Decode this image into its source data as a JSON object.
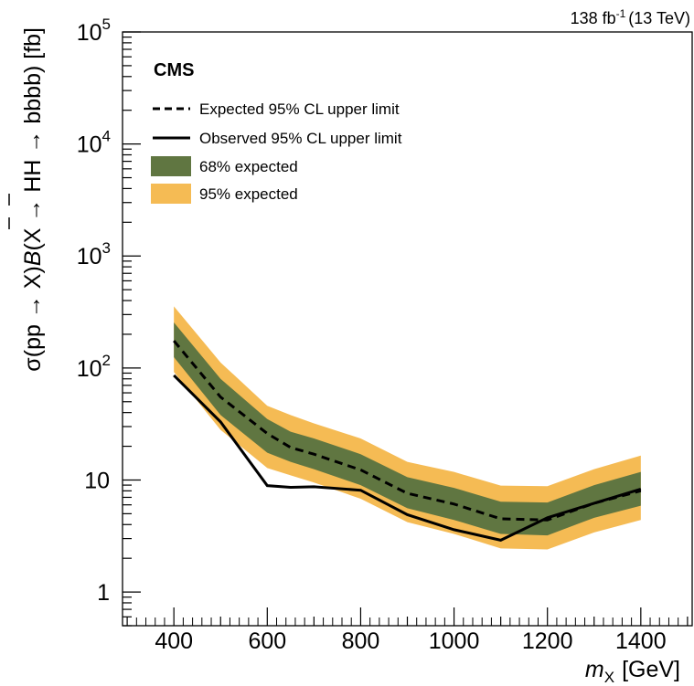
{
  "chart_data": {
    "type": "line",
    "title": "",
    "experiment_label": "CMS",
    "lumi_label": "138 fb",
    "lumi_superscript": "-1",
    "lumi_energy": "(13 TeV)",
    "xlabel": {
      "var": "m",
      "sub": "X",
      "unit": "[GeV]"
    },
    "ylabel": {
      "pre": "σ(pp → X)",
      "b": "B",
      "post": "(X → HH → bbbb) [fb]"
    },
    "xlim": [
      290,
      1510
    ],
    "ylim": [
      0.5,
      100000
    ],
    "yscale": "log",
    "x_ticks": [
      400,
      600,
      800,
      1000,
      1200,
      1400
    ],
    "x_tick_labels": [
      "400",
      "600",
      "800",
      "1000",
      "1200",
      "1400"
    ],
    "y_ticks": [
      {
        "value": 1,
        "base": "1",
        "exp": ""
      },
      {
        "value": 10,
        "base": "10",
        "exp": ""
      },
      {
        "value": 100,
        "base": "10",
        "exp": "2"
      },
      {
        "value": 1000,
        "base": "10",
        "exp": "3"
      },
      {
        "value": 10000,
        "base": "10",
        "exp": "4"
      },
      {
        "value": 100000,
        "base": "10",
        "exp": "5"
      }
    ],
    "x": [
      400,
      500,
      600,
      650,
      700,
      800,
      900,
      1000,
      1100,
      1200,
      1300,
      1400
    ],
    "series": [
      {
        "name": "Expected 95% CL upper limit",
        "style": "dashed",
        "values": [
          175,
          55,
          26,
          19.5,
          17,
          12.3,
          7.6,
          6.1,
          4.5,
          4.4,
          6.2,
          8.0
        ]
      },
      {
        "name": "Observed 95% CL upper limit",
        "style": "solid",
        "values": [
          86,
          33,
          8.9,
          8.6,
          8.7,
          8.1,
          4.9,
          3.6,
          2.9,
          4.6,
          6.2,
          8.3
        ]
      }
    ],
    "bands": [
      {
        "name": "95% expected",
        "color": "#F5BB54",
        "low": [
          92,
          28,
          12.8,
          11,
          9.5,
          6.8,
          4.2,
          3.3,
          2.45,
          2.4,
          3.4,
          4.4
        ],
        "high": [
          355,
          112,
          46,
          38,
          32,
          23.5,
          14.5,
          11.8,
          8.9,
          8.8,
          12.5,
          16.5
        ]
      },
      {
        "name": "68% expected",
        "color": "#607641",
        "low": [
          125,
          38,
          17.5,
          14.5,
          12.5,
          9,
          5.6,
          4.4,
          3.3,
          3.2,
          4.6,
          5.9
        ],
        "high": [
          255,
          80,
          35,
          27,
          23.5,
          17,
          10.6,
          8.5,
          6.4,
          6.3,
          9,
          11.8
        ]
      }
    ],
    "legend_position": "top-left",
    "grid": false
  }
}
